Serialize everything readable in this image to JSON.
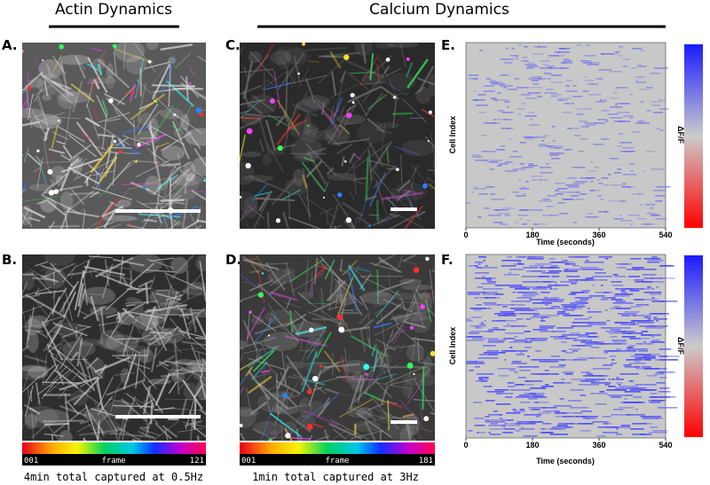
{
  "header": {
    "actin_title": "Actin Dynamics",
    "calcium_title": "Calcium Dynamics"
  },
  "panels": [
    {
      "label": "A."
    },
    {
      "label": "B."
    },
    {
      "label": "C."
    },
    {
      "label": "D."
    },
    {
      "label": "E.",
      "y_label": "Cell Index",
      "colorbar_label": "ΔF/F",
      "x_label": "Time (seconds)",
      "xlim": [
        0,
        540
      ],
      "xticks": [
        0,
        180,
        360,
        540
      ]
    },
    {
      "label": "F.",
      "y_label": "Cell Index",
      "colorbar_label": "ΔF/F",
      "x_label": "Time (seconds)",
      "xlim": [
        0,
        540
      ],
      "xticks": [
        0,
        180,
        360,
        540
      ]
    }
  ],
  "frame_bars": [
    {
      "start": "001",
      "label": "frame",
      "end": "121",
      "caption": "4min total captured at 0.5Hz"
    },
    {
      "start": "001",
      "label": "frame",
      "end": "181",
      "caption": "1min total captured at 3Hz"
    }
  ]
}
